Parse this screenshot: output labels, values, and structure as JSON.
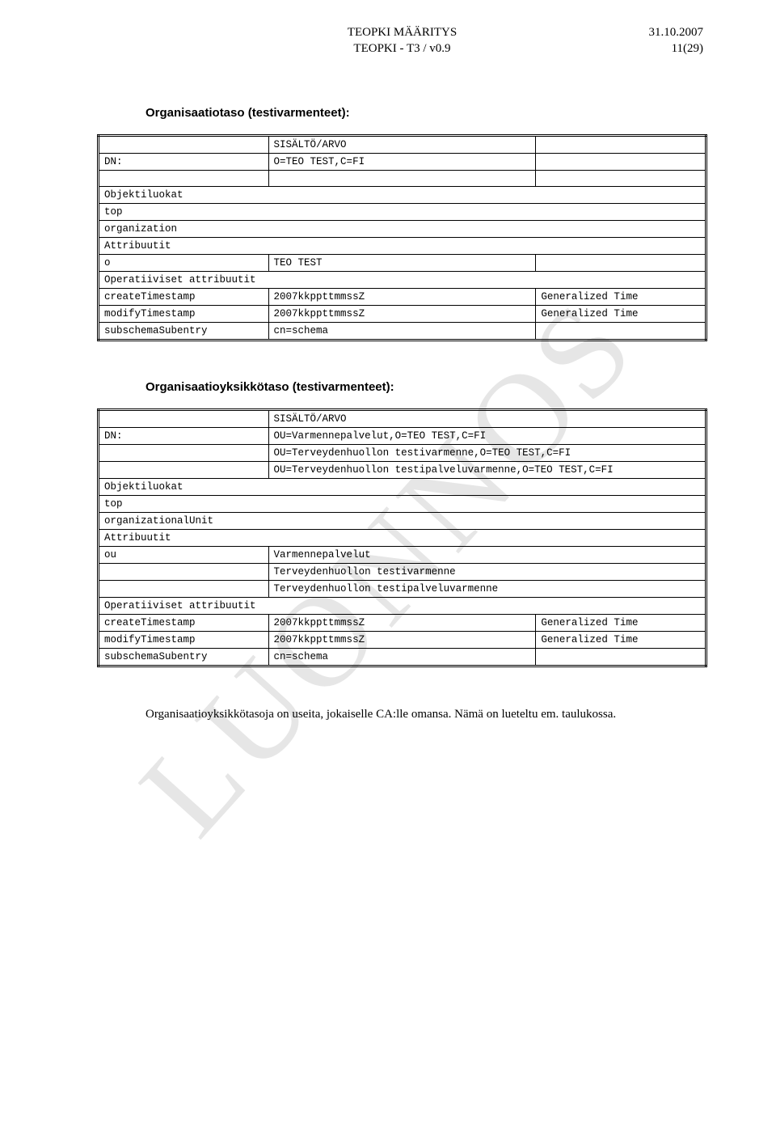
{
  "header": {
    "title_line1": "TEOPKI MÄÄRITYS",
    "title_line2": "TEOPKI - T3 / v0.9",
    "date": "31.10.2007",
    "page": "11(29)"
  },
  "watermark": "LUONNOS",
  "section1_title": "Organisaatiotaso (testivarmenteet):",
  "section2_title": "Organisaatioyksikkötaso (testivarmenteet):",
  "footer_text": "Organisaatioyksikkötasoja on useita, jokaiselle CA:lle omansa. Nämä on lueteltu em. taulukossa.",
  "t1": {
    "sisalto": "SISÄLTÖ/ARVO",
    "dn": "DN:",
    "dn_val": "O=TEO TEST,C=FI",
    "objekti": "Objektiluokat",
    "top": "top",
    "org": "organization",
    "attr": "Attribuutit",
    "o": "o",
    "o_val": "TEO TEST",
    "oper": "Operatiiviset attribuutit",
    "create": "createTimestamp",
    "modify": "modifyTimestamp",
    "ts": "2007kkppttmmssZ",
    "gen": "Generalized Time",
    "subschema": "subschemaSubentry",
    "cn": "cn=schema"
  },
  "t2": {
    "sisalto": "SISÄLTÖ/ARVO",
    "dn": "DN:",
    "dn_val1": "OU=Varmennepalvelut,O=TEO TEST,C=FI",
    "dn_val2": "OU=Terveydenhuollon testivarmenne,O=TEO TEST,C=FI",
    "dn_val3": "OU=Terveydenhuollon testipalveluvarmenne,O=TEO TEST,C=FI",
    "objekti": "Objektiluokat",
    "top": "top",
    "orgunit": "organizationalUnit",
    "attr": "Attribuutit",
    "ou": "ou",
    "ou1": "Varmennepalvelut",
    "ou2": "Terveydenhuollon testivarmenne",
    "ou3": "Terveydenhuollon testipalveluvarmenne",
    "oper": "Operatiiviset attribuutit",
    "create": "createTimestamp",
    "modify": "modifyTimestamp",
    "ts": "2007kkppttmmssZ",
    "gen": "Generalized Time",
    "subschema": "subschemaSubentry",
    "cn": "cn=schema"
  }
}
